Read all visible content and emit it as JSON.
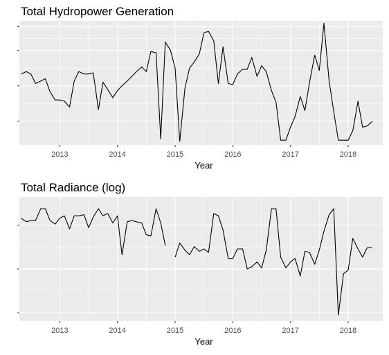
{
  "chart_data": [
    {
      "type": "line",
      "title": "Total Hydropower Generation",
      "xlabel": "Year",
      "ylabel": "",
      "x_tick_labels": [
        "2013",
        "2014",
        "2015",
        "2016",
        "2017",
        "2018"
      ],
      "xlim": [
        2012.3,
        2018.6
      ],
      "ylim": [
        0,
        1.05
      ],
      "y_ticks": [
        0.2,
        0.5,
        0.8,
        1.0
      ],
      "y_tick_labels_shown": false,
      "grid": true,
      "background": "#ebebeb",
      "grid_color": "#ffffff",
      "line_color": "#000000",
      "series": [
        {
          "x": [
            2012.33,
            2012.42,
            2012.5,
            2012.58,
            2012.67,
            2012.75,
            2012.83,
            2012.92,
            2013.0,
            2013.08,
            2013.17,
            2013.25,
            2013.33,
            2013.42,
            2013.5,
            2013.58,
            2013.67,
            2013.75,
            2013.83,
            2013.92,
            2014.0,
            2014.08,
            2014.17,
            2014.25,
            2014.33,
            2014.42,
            2014.5,
            2014.58,
            2014.67,
            2014.75,
            2014.83,
            2014.92,
            2015.0,
            2015.08,
            2015.17,
            2015.25,
            2015.33,
            2015.42,
            2015.5,
            2015.58,
            2015.67,
            2015.75,
            2015.83,
            2015.92,
            2016.0,
            2016.08,
            2016.17,
            2016.25,
            2016.33,
            2016.42,
            2016.5,
            2016.58,
            2016.67,
            2016.75,
            2016.83,
            2016.92,
            2017.0,
            2017.08,
            2017.17,
            2017.25,
            2017.33,
            2017.42,
            2017.5,
            2017.58,
            2017.67,
            2017.75,
            2017.83,
            2017.92,
            2018.0,
            2018.08,
            2018.17,
            2018.25,
            2018.33
          ],
          "y": [
            0.6,
            0.62,
            0.6,
            0.52,
            0.54,
            0.56,
            0.45,
            0.38,
            0.38,
            0.37,
            0.32,
            0.54,
            0.62,
            0.6,
            0.6,
            0.61,
            0.3,
            0.53,
            0.47,
            0.4,
            0.46,
            0.5,
            0.54,
            0.58,
            0.62,
            0.66,
            0.62,
            0.79,
            0.78,
            0.05,
            0.87,
            0.8,
            0.65,
            0.03,
            0.48,
            0.65,
            0.7,
            0.77,
            0.95,
            0.96,
            0.88,
            0.52,
            0.83,
            0.52,
            0.51,
            0.6,
            0.64,
            0.64,
            0.74,
            0.58,
            0.67,
            0.62,
            0.46,
            0.36,
            0.04,
            0.04,
            0.15,
            0.24,
            0.41,
            0.29,
            0.53,
            0.76,
            0.63,
            1.03,
            0.54,
            0.28,
            0.04,
            0.04,
            0.04,
            0.12,
            0.37,
            0.15,
            0.16
          ]
        },
        {
          "x": [
            2018.33,
            2018.42
          ],
          "y": [
            0.16,
            0.2
          ]
        }
      ]
    },
    {
      "type": "line",
      "title": "Total Radiance (log)",
      "xlabel": "Year",
      "ylabel": "",
      "x_tick_labels": [
        "2013",
        "2014",
        "2015",
        "2016",
        "2017",
        "2018"
      ],
      "xlim": [
        2012.3,
        2018.6
      ],
      "ylim": [
        0,
        1.05
      ],
      "y_ticks": [
        0.07,
        0.44,
        0.81
      ],
      "y_tick_labels_shown": false,
      "grid": true,
      "background": "#ebebeb",
      "grid_color": "#ffffff",
      "line_color": "#000000",
      "series": [
        {
          "x": [
            2012.33,
            2012.42,
            2012.5,
            2012.58,
            2012.67,
            2012.75,
            2012.83,
            2012.92,
            2013.0,
            2013.08,
            2013.17,
            2013.25,
            2013.33,
            2013.42,
            2013.5,
            2013.58,
            2013.67,
            2013.75,
            2013.83,
            2013.92,
            2014.0,
            2014.08,
            2014.17,
            2014.25,
            2014.33,
            2014.42,
            2014.5,
            2014.58,
            2014.67,
            2014.75,
            2014.83
          ],
          "y": [
            0.87,
            0.84,
            0.85,
            0.85,
            0.95,
            0.95,
            0.85,
            0.82,
            0.87,
            0.89,
            0.78,
            0.89,
            0.89,
            0.9,
            0.79,
            0.88,
            0.95,
            0.89,
            0.91,
            0.83,
            0.89,
            0.56,
            0.84,
            0.85,
            0.84,
            0.83,
            0.73,
            0.72,
            0.95,
            0.83,
            0.64
          ]
        },
        {
          "x": [
            2015.0,
            2015.08,
            2015.17,
            2015.25,
            2015.33,
            2015.42,
            2015.5,
            2015.58,
            2015.67,
            2015.75,
            2015.83,
            2015.92,
            2016.0,
            2016.08,
            2016.17,
            2016.25,
            2016.33,
            2016.42,
            2016.5,
            2016.58,
            2016.67,
            2016.75,
            2016.83,
            2016.92,
            2017.0,
            2017.08,
            2017.17,
            2017.25,
            2017.33,
            2017.42,
            2017.5,
            2017.58,
            2017.67,
            2017.75,
            2017.83,
            2017.92,
            2018.0,
            2018.08,
            2018.17,
            2018.25,
            2018.33,
            2018.42
          ],
          "y": [
            0.54,
            0.66,
            0.6,
            0.56,
            0.63,
            0.59,
            0.61,
            0.58,
            0.91,
            0.89,
            0.77,
            0.53,
            0.53,
            0.61,
            0.61,
            0.44,
            0.46,
            0.5,
            0.45,
            0.6,
            0.95,
            0.95,
            0.54,
            0.45,
            0.5,
            0.53,
            0.38,
            0.59,
            0.58,
            0.48,
            0.6,
            0.76,
            0.9,
            0.95,
            0.05,
            0.4,
            0.43,
            0.7,
            0.61,
            0.54,
            0.62,
            0.62
          ]
        }
      ]
    }
  ]
}
